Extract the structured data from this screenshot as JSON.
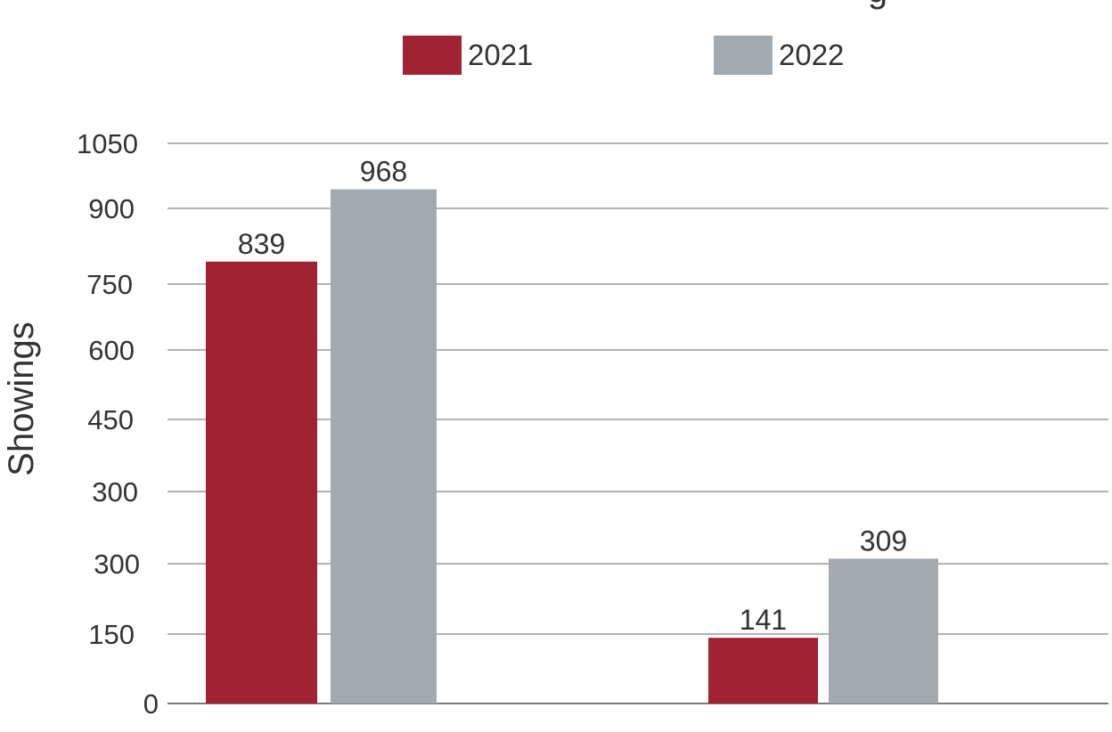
{
  "chart_data": {
    "type": "bar",
    "title_fragment": "g",
    "ylabel": "Showings",
    "xlabel": "",
    "categories": [
      "",
      ""
    ],
    "series": [
      {
        "name": "2021",
        "values": [
          839,
          141
        ],
        "color": "#a02233"
      },
      {
        "name": "2022",
        "values": [
          968,
          309
        ],
        "color": "#a2aab0"
      }
    ],
    "y_tick_labels": [
      "0",
      "150",
      "300",
      "300",
      "450",
      "600",
      "750",
      "900",
      "1050"
    ],
    "legend_position": "top-center",
    "grid": true
  }
}
